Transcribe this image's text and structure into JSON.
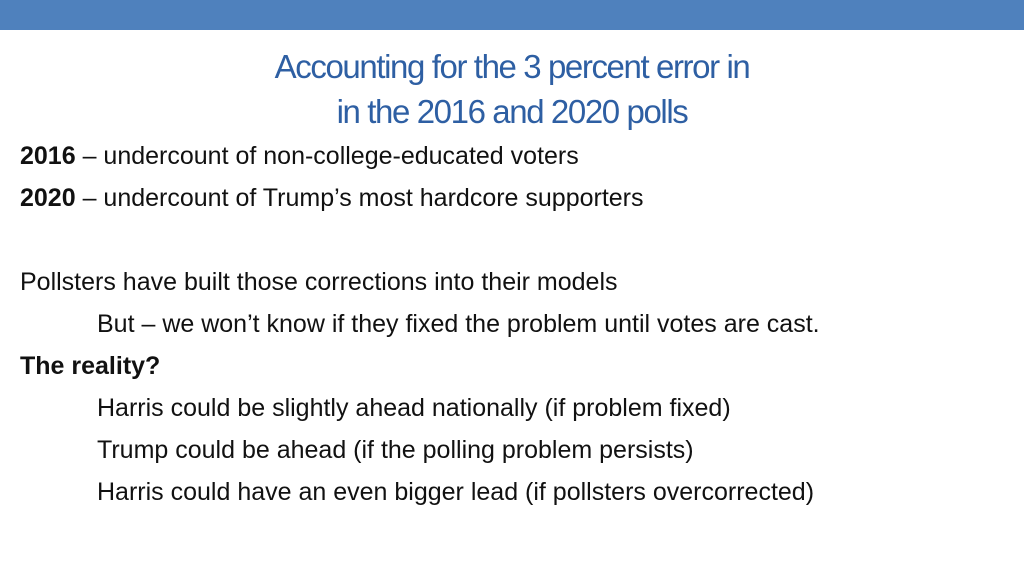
{
  "slide": {
    "title_line_1": "Accounting for the 3 percent error in",
    "title_line_2": "in the 2016 and 2020 polls",
    "items": [
      {
        "year": "2016",
        "text": " – undercount of non-college-educated voters"
      },
      {
        "year": "2020",
        "text": " – undercount of Trump’s most hardcore supporters"
      }
    ],
    "pollsters_line": "Pollsters have built those corrections into their models",
    "but_line": "But – we won’t know if they fixed the problem until votes are cast.",
    "reality_heading": "The reality?",
    "scenarios": [
      "Harris could be slightly ahead nationally (if problem fixed)",
      "Trump could be ahead (if the polling problem persists)",
      "Harris could have an even bigger lead (if pollsters overcorrected)"
    ]
  },
  "colors": {
    "top_bar": "#4f81bd",
    "title": "#2e5fa3",
    "text": "#111111"
  }
}
